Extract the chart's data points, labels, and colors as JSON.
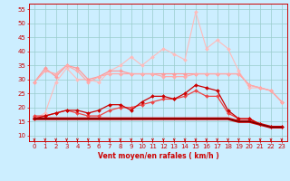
{
  "x": [
    0,
    1,
    2,
    3,
    4,
    5,
    6,
    7,
    8,
    9,
    10,
    11,
    12,
    13,
    14,
    15,
    16,
    17,
    18,
    19,
    20,
    21,
    22,
    23
  ],
  "background_color": "#cceeff",
  "grid_color": "#99cccc",
  "xlabel": "Vent moyen/en rafales ( km/h )",
  "ylabel_ticks": [
    10,
    15,
    20,
    25,
    30,
    35,
    40,
    45,
    50,
    55
  ],
  "ylim": [
    8,
    57
  ],
  "xlim": [
    -0.5,
    23.5
  ],
  "lines": [
    {
      "values": [
        16,
        18,
        29,
        34,
        30,
        30,
        29,
        33,
        35,
        38,
        35,
        38,
        41,
        39,
        37,
        54,
        41,
        44,
        41,
        33,
        27,
        27,
        26,
        22
      ],
      "color": "#ffbbbb",
      "marker": "D",
      "markersize": 2.0,
      "linewidth": 0.8,
      "zorder": 2
    },
    {
      "values": [
        29,
        34,
        31,
        35,
        34,
        30,
        31,
        33,
        33,
        32,
        32,
        32,
        32,
        32,
        32,
        32,
        32,
        32,
        32,
        32,
        28,
        27,
        26,
        22
      ],
      "color": "#ff9999",
      "marker": "D",
      "markersize": 2.0,
      "linewidth": 0.9,
      "zorder": 3
    },
    {
      "values": [
        29,
        33,
        32,
        35,
        33,
        29,
        31,
        32,
        32,
        32,
        32,
        32,
        31,
        31,
        31,
        32,
        32,
        32,
        32,
        32,
        28,
        27,
        26,
        22
      ],
      "color": "#ffaaaa",
      "marker": "D",
      "markersize": 2.0,
      "linewidth": 0.9,
      "zorder": 3
    },
    {
      "values": [
        17,
        17,
        18,
        19,
        18,
        17,
        17,
        19,
        20,
        20,
        21,
        22,
        23,
        23,
        24,
        26,
        24,
        24,
        18,
        16,
        16,
        14,
        13,
        13
      ],
      "color": "#ee4444",
      "marker": "D",
      "markersize": 2.0,
      "linewidth": 0.9,
      "zorder": 4
    },
    {
      "values": [
        16,
        17,
        18,
        19,
        19,
        18,
        19,
        21,
        21,
        19,
        22,
        24,
        24,
        23,
        25,
        28,
        27,
        26,
        19,
        16,
        16,
        14,
        13,
        13
      ],
      "color": "#cc0000",
      "marker": "D",
      "markersize": 2.0,
      "linewidth": 0.9,
      "zorder": 5
    },
    {
      "values": [
        16,
        16,
        16,
        16,
        16,
        16,
        16,
        16,
        16,
        16,
        16,
        16,
        16,
        16,
        16,
        16,
        16,
        16,
        16,
        15,
        15,
        14,
        13,
        13
      ],
      "color": "#cc0000",
      "marker": null,
      "markersize": 0,
      "linewidth": 2.2,
      "zorder": 6
    },
    {
      "values": [
        16,
        16,
        16,
        16,
        16,
        16,
        16,
        16,
        16,
        16,
        16,
        16,
        16,
        16,
        16,
        16,
        16,
        16,
        16,
        15,
        15,
        14,
        13,
        13
      ],
      "color": "#660000",
      "marker": null,
      "markersize": 0,
      "linewidth": 0.8,
      "zorder": 7
    }
  ],
  "arrow_color": "#cc0000",
  "axis_label_fontsize": 5.5,
  "tick_fontsize": 5.0,
  "xlabel_fontsize": 5.5
}
